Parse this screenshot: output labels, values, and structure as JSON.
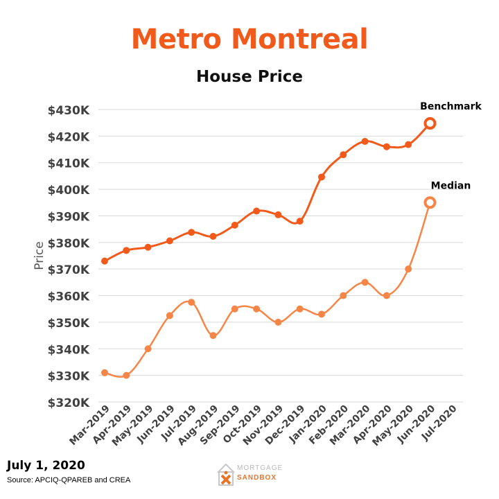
{
  "title": "Metro Montreal",
  "subtitle": "House Price",
  "colors": {
    "title": "#f25a1b",
    "benchmark": "#f25a1b",
    "median": "#f58647",
    "grid": "#d9d9d9",
    "axis_text": "#404040"
  },
  "footer": {
    "date": "July 1, 2020",
    "source": "Source: APCIQ-QPAREB  and CREA"
  },
  "logo": {
    "line1": "MORTGAGE",
    "line2": "SANDBOX",
    "icon": "house-x-icon"
  },
  "chart_data": {
    "type": "line",
    "title": "House Price",
    "ylabel": "Price",
    "xlabel": "",
    "ylim": [
      320000,
      430000
    ],
    "yticks": [
      320000,
      330000,
      340000,
      350000,
      360000,
      370000,
      380000,
      390000,
      400000,
      410000,
      420000,
      430000
    ],
    "ytick_labels": [
      "$320K",
      "$330K",
      "$340K",
      "$350K",
      "$360K",
      "$370K",
      "$380K",
      "$390K",
      "$400K",
      "$410K",
      "$420K",
      "$430K"
    ],
    "categories": [
      "Mar-2019",
      "Apr-2019",
      "May-2019",
      "Jun-2019",
      "Jul-2019",
      "Aug-2019",
      "Sep-2019",
      "Oct-2019",
      "Nov-2019",
      "Dec-2019",
      "Jan-2020",
      "Feb-2020",
      "Mar-2020",
      "Apr-2020",
      "May-2020",
      "Jun-2020",
      "Jul-2020"
    ],
    "grid": "horizontal",
    "series": [
      {
        "name": "Benchmark",
        "values": [
          373000,
          377000,
          378200,
          380600,
          383800,
          382300,
          386500,
          391800,
          390400,
          388000,
          404600,
          413000,
          418000,
          416000,
          416800,
          424800,
          null
        ]
      },
      {
        "name": "Median",
        "values": [
          331000,
          330000,
          340000,
          352500,
          357500,
          345000,
          355000,
          355000,
          350000,
          355000,
          353000,
          360000,
          365000,
          360000,
          370000,
          395000,
          null
        ]
      }
    ]
  }
}
